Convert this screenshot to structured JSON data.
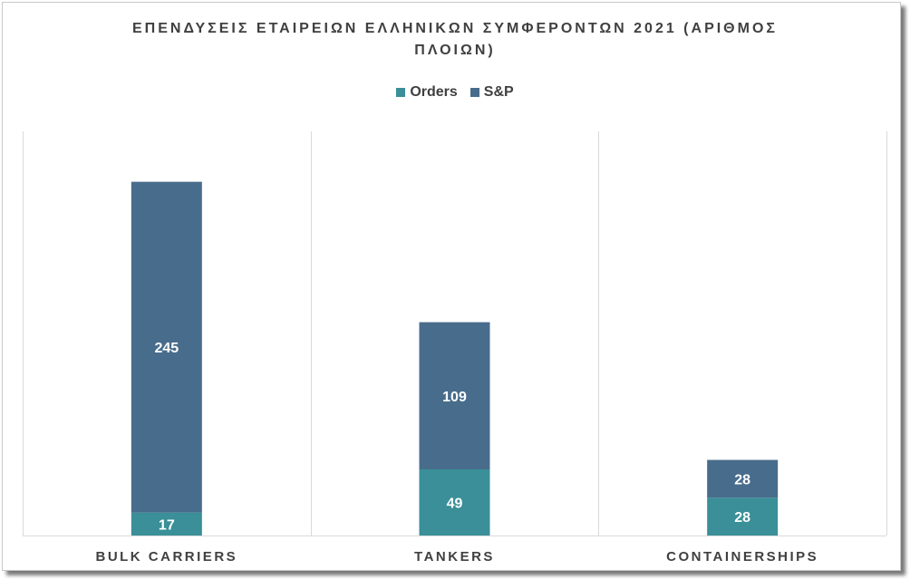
{
  "chart_data": {
    "type": "bar",
    "stacked": true,
    "title_line1": "ΕΠΕΝΔΥΣΕΙΣ ΕΤΑΙΡΕΙΩΝ ΕΛΛΗΝΙΚΩΝ ΣΥΜΦΕΡΟΝΤΩΝ 2021 (ΑΡΙΘΜΟΣ",
    "title_line2": "ΠΛΟΙΩΝ)",
    "categories": [
      "BULK CARRIERS",
      "TANKERS",
      "CONTAINERSHIPS"
    ],
    "series": [
      {
        "name": "Orders",
        "color": "#3a8f98",
        "values": [
          17,
          49,
          28
        ]
      },
      {
        "name": "S&P",
        "color": "#486c8c",
        "values": [
          245,
          109,
          28
        ]
      }
    ],
    "ylim": [
      0,
      300
    ],
    "grid": "vertical category separators",
    "legend_position": "top"
  }
}
